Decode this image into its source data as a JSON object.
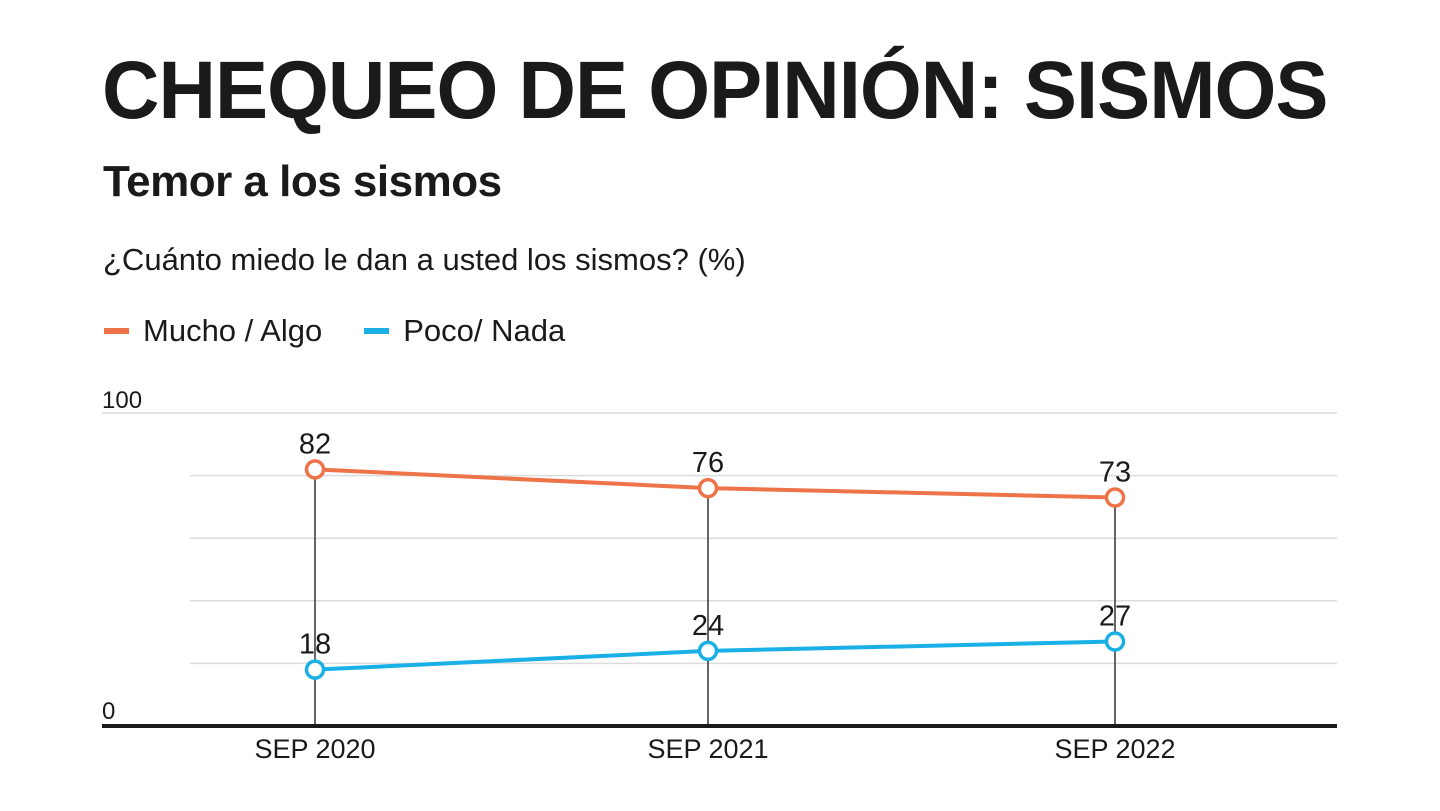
{
  "header": {
    "title": "CHEQUEO DE OPINIÓN: SISMOS",
    "subtitle": "Temor a los sismos",
    "question": "¿Cuánto miedo le dan a usted los sismos? (%)"
  },
  "chart_data": {
    "type": "line",
    "title": "Temor a los sismos",
    "subtitle": "¿Cuánto miedo le dan a usted los sismos? (%)",
    "xlabel": "",
    "ylabel": "%",
    "categories": [
      "SEP 2020",
      "SEP 2021",
      "SEP 2022"
    ],
    "ylim": [
      0,
      100
    ],
    "y_tick_labels": [
      "0",
      "100"
    ],
    "gridlines": [
      20,
      40,
      60,
      80,
      100
    ],
    "grid": true,
    "legend_position": "top-left",
    "series": [
      {
        "name": "Mucho / Algo",
        "color": "#ef7349",
        "values": [
          82,
          76,
          73
        ]
      },
      {
        "name": "Poco/ Nada",
        "color": "#1ab0e6",
        "values": [
          18,
          24,
          27
        ]
      }
    ]
  }
}
